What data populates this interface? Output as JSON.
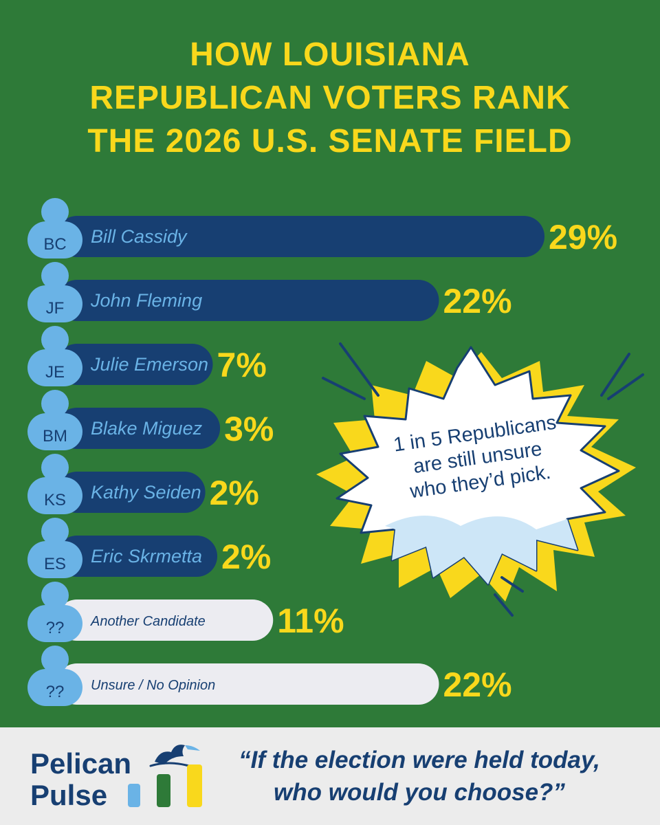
{
  "title_lines": [
    "HOW LOUISIANA",
    "REPUBLICAN VOTERS RANK",
    "THE 2026 U.S. SENATE FIELD"
  ],
  "chart_data": {
    "type": "bar",
    "orientation": "horizontal",
    "title": "HOW LOUISIANA REPUBLICAN VOTERS RANK THE 2026 U.S. SENATE FIELD",
    "categories": [
      "Bill Cassidy",
      "John Fleming",
      "Julie Emerson",
      "Blake Miguez",
      "Kathy Seiden",
      "Eric Skrmetta",
      "Another Candidate",
      "Unsure / No Opinion"
    ],
    "initials": [
      "BC",
      "JF",
      "JE",
      "BM",
      "KS",
      "ES",
      "??",
      "??"
    ],
    "values": [
      29,
      22,
      7,
      3,
      2,
      2,
      11,
      22
    ],
    "value_labels": [
      "29%",
      "22%",
      "7%",
      "3%",
      "2%",
      "2%",
      "11%",
      "22%"
    ],
    "unit": "%",
    "xlim": [
      0,
      29
    ]
  },
  "callout": {
    "lines": [
      "1 in 5 Republicans",
      "are still unsure",
      "who they’d pick."
    ]
  },
  "footer": {
    "brand_line1": "Pelican",
    "brand_line2": "Pulse",
    "quote_line1": "“If the election were held today,",
    "quote_line2": "who would you choose?”"
  },
  "colors": {
    "background": "#2e7a38",
    "accent": "#f9d81c",
    "bar": "#173f72",
    "bar_light": "#ececf1",
    "avatar": "#6ab3e6",
    "footer_bg": "#ececec"
  }
}
